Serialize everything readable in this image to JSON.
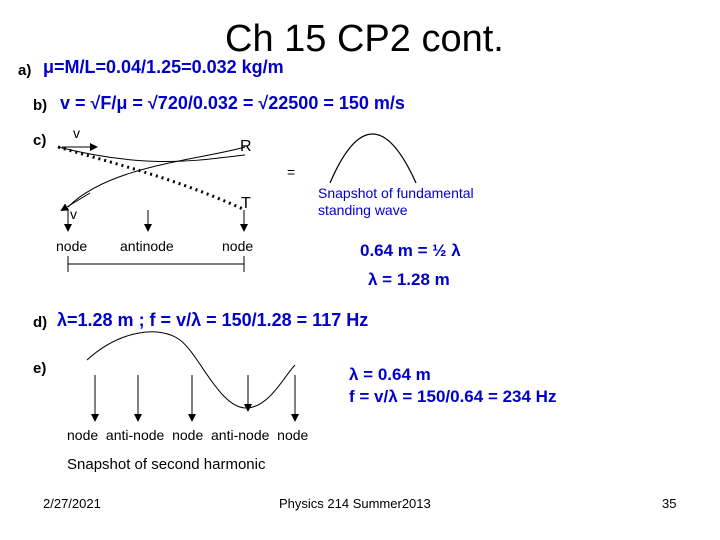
{
  "title": "Ch 15 CP2 cont.",
  "a": {
    "label": "a)",
    "text": "μ=M/L=0.04/1.25=0.032 kg/m"
  },
  "b": {
    "label": "b)",
    "text": "v = √F/μ = √720/0.032 = √22500 = 150 m/s"
  },
  "c": {
    "label": "c)",
    "v_top": "v",
    "v_bottom": "v",
    "R": "R",
    "T": "T",
    "equals": "=",
    "node1": "node",
    "antinode": "antinode",
    "node2": "node",
    "snapshot_line1": "Snapshot of fundamental",
    "snapshot_line2": "standing wave",
    "eq1": "0.64 m = ½ λ",
    "eq2": "λ = 1.28 m"
  },
  "d": {
    "label": "d)",
    "text": "λ=1.28 m ; f = v/λ = 150/1.28 = 117 Hz"
  },
  "e": {
    "label": "e)",
    "eq1": "λ = 0.64 m",
    "eq2": "f = v/λ = 150/0.64 = 234 Hz",
    "nodes_row": "node  anti-node  node  anti-node  node",
    "caption": "Snapshot of second harmonic"
  },
  "footer": {
    "date": "2/27/2021",
    "course": "Physics 214 Summer2013",
    "page": "35"
  }
}
